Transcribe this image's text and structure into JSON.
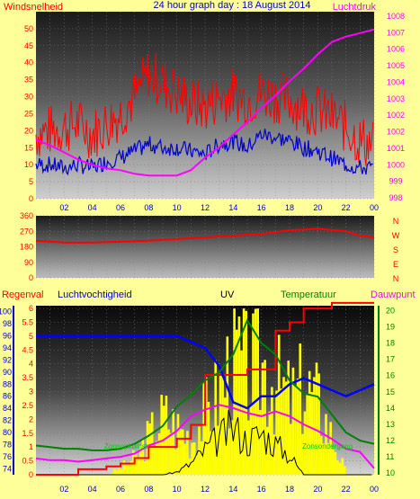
{
  "header": {
    "title": "24 hour graph day : 18 August 2014",
    "left_label": "Windsnelheid",
    "right_label": "Luchtdruk"
  },
  "colors": {
    "background": "#ffff99",
    "wind_gust": "#ff0000",
    "wind_avg": "#0000cc",
    "pressure": "#ff00ff",
    "direction": "#ff0000",
    "humidity": "#0000ff",
    "temperature": "#008000",
    "dewpoint": "#ff00ff",
    "rain": "#ff0000",
    "uv": "#000000",
    "solar": "#ffff00",
    "title": "#0000cc"
  },
  "x_axis": {
    "ticks": [
      "02",
      "04",
      "06",
      "08",
      "10",
      "12",
      "14",
      "16",
      "18",
      "20",
      "22",
      "00"
    ]
  },
  "chart_data": [
    {
      "type": "line",
      "panel": "wind-pressure",
      "x_hours": [
        0,
        1,
        2,
        3,
        4,
        5,
        6,
        7,
        8,
        9,
        10,
        11,
        12,
        13,
        14,
        15,
        16,
        17,
        18,
        19,
        20,
        21,
        22,
        23,
        24
      ],
      "series": [
        {
          "name": "Windsnelheid",
          "axis": "left",
          "values": [
            19,
            20,
            21,
            22,
            19,
            22,
            25,
            30,
            37,
            34,
            31,
            28,
            27,
            30,
            31,
            29,
            31,
            30,
            29,
            27,
            26,
            24,
            21,
            17,
            16
          ]
        },
        {
          "name": "Windsnelheid avg",
          "axis": "left",
          "values": [
            10,
            10,
            9,
            10,
            9,
            11,
            12,
            14,
            16,
            15,
            15,
            14,
            13,
            16,
            17,
            15,
            19,
            18,
            17,
            15,
            14,
            12,
            10,
            9,
            9
          ]
        },
        {
          "name": "Luchtdruk",
          "axis": "right",
          "values": [
            1000.8,
            1000.5,
            1000.1,
            999.7,
            999.4,
            999.2,
            999.1,
            998.9,
            998.8,
            998.8,
            998.8,
            999.1,
            999.8,
            1000.4,
            1001.1,
            1001.8,
            1002.6,
            1003.3,
            1004.1,
            1004.8,
            1005.6,
            1006.3,
            1006.6,
            1006.8,
            1007.0
          ]
        }
      ],
      "ylim_left": [
        0,
        55
      ],
      "ylim_right": [
        997.5,
        1008
      ],
      "left_ticks": [
        "0",
        "5",
        "10",
        "15",
        "20",
        "25",
        "30",
        "35",
        "40",
        "45",
        "50"
      ],
      "right_ticks": [
        "998",
        "999",
        "1000",
        "1001",
        "1002",
        "1002",
        "1003",
        "1004",
        "1005",
        "1006",
        "1007",
        "1008"
      ]
    },
    {
      "type": "line",
      "panel": "direction",
      "x_hours": [
        0,
        2,
        4,
        6,
        8,
        10,
        12,
        14,
        16,
        18,
        20,
        22,
        23,
        24
      ],
      "series": [
        {
          "name": "Windrichting",
          "values": [
            215,
            205,
            205,
            210,
            215,
            225,
            235,
            245,
            255,
            275,
            285,
            270,
            245,
            235
          ]
        }
      ],
      "ylim": [
        0,
        360
      ],
      "ticks": [
        "0",
        "90",
        "180",
        "270",
        "360"
      ],
      "compass": [
        "N",
        "W",
        "S",
        "E",
        "N"
      ]
    },
    {
      "type": "line",
      "panel": "climate",
      "x_hours": [
        0,
        1,
        2,
        3,
        4,
        5,
        6,
        7,
        8,
        9,
        10,
        11,
        12,
        13,
        14,
        15,
        16,
        17,
        18,
        19,
        20,
        21,
        22,
        23,
        24
      ],
      "series": [
        {
          "name": "Luchtvochtigheid",
          "axis": "left",
          "values": [
            96,
            96,
            96,
            96,
            96,
            96,
            96,
            96,
            96,
            96,
            96,
            95,
            94,
            91,
            85,
            84,
            86,
            86,
            88,
            89,
            88,
            87,
            86,
            87,
            88
          ]
        },
        {
          "name": "Temperatuur",
          "axis": "right",
          "values": [
            11.7,
            11.6,
            11.5,
            11.5,
            11.4,
            11.4,
            11.5,
            11.8,
            12.3,
            12.9,
            14.1,
            14.8,
            15.7,
            16.2,
            17.3,
            19.4,
            18.0,
            17.3,
            15.7,
            14.9,
            14.7,
            13.6,
            12.5,
            12.0,
            11.8
          ]
        },
        {
          "name": "Dauwpunt",
          "axis": "right",
          "values": [
            10.9,
            10.8,
            10.8,
            10.7,
            10.8,
            10.9,
            11.0,
            11.2,
            11.7,
            12.0,
            12.6,
            13.5,
            13.9,
            14.2,
            14.0,
            13.7,
            13.5,
            13.8,
            13.5,
            13.0,
            12.6,
            12.1,
            11.5,
            11.3,
            10.3
          ]
        },
        {
          "name": "Regenval",
          "axis": "rain",
          "values": [
            0,
            0,
            0,
            0.2,
            0.2,
            0.3,
            0.4,
            0.6,
            1.0,
            1.0,
            1.3,
            1.8,
            3.6,
            3.6,
            3.6,
            3.8,
            3.8,
            5.2,
            5.5,
            6.0,
            6.0,
            6.2,
            6.2,
            6.2,
            6.2
          ]
        },
        {
          "name": "UV",
          "axis": "rain",
          "values": [
            0,
            0,
            0,
            0,
            0,
            0,
            0,
            0,
            0,
            0,
            0.1,
            0.4,
            0.9,
            1.3,
            1.7,
            1.2,
            1.5,
            1.1,
            0.7,
            0,
            0,
            0,
            0,
            0,
            0
          ]
        },
        {
          "name": "Zonneschijn",
          "axis": "rain",
          "values": [
            0,
            0,
            0,
            0,
            0,
            0,
            0.3,
            0.7,
            1.6,
            2.4,
            1.9,
            1.5,
            2.6,
            3.4,
            4.9,
            4.1,
            4.5,
            3.7,
            3.0,
            3.6,
            2.9,
            1.4,
            0,
            0,
            0
          ]
        }
      ],
      "left_ticks": [
        "74",
        "76",
        "78",
        "80",
        "82",
        "84",
        "86",
        "88",
        "90",
        "92",
        "94",
        "96",
        "98",
        "100"
      ],
      "mid_ticks": [
        "0",
        "0.5",
        "1",
        "1.5",
        "2",
        "2.5",
        "3",
        "3.5",
        "4",
        "4.5",
        "5",
        "5.5",
        "6"
      ],
      "right_ticks": [
        "10",
        "11",
        "12",
        "13",
        "14",
        "15",
        "16",
        "17",
        "18",
        "19",
        "20"
      ],
      "ylim_left": [
        73,
        101
      ],
      "ylim_mid": [
        0,
        6.1
      ],
      "ylim_right": [
        9.9,
        20.3
      ]
    }
  ],
  "bottom_panel": {
    "regenval_label": "Regenval",
    "humidity_label": "Luchtvochtigheid",
    "uv_label": "UV",
    "temp_label": "Temperatuur",
    "dew_label": "Dauwpunt",
    "sunrise": "Zonsopkomst",
    "sunset": "Zonsondergang"
  }
}
